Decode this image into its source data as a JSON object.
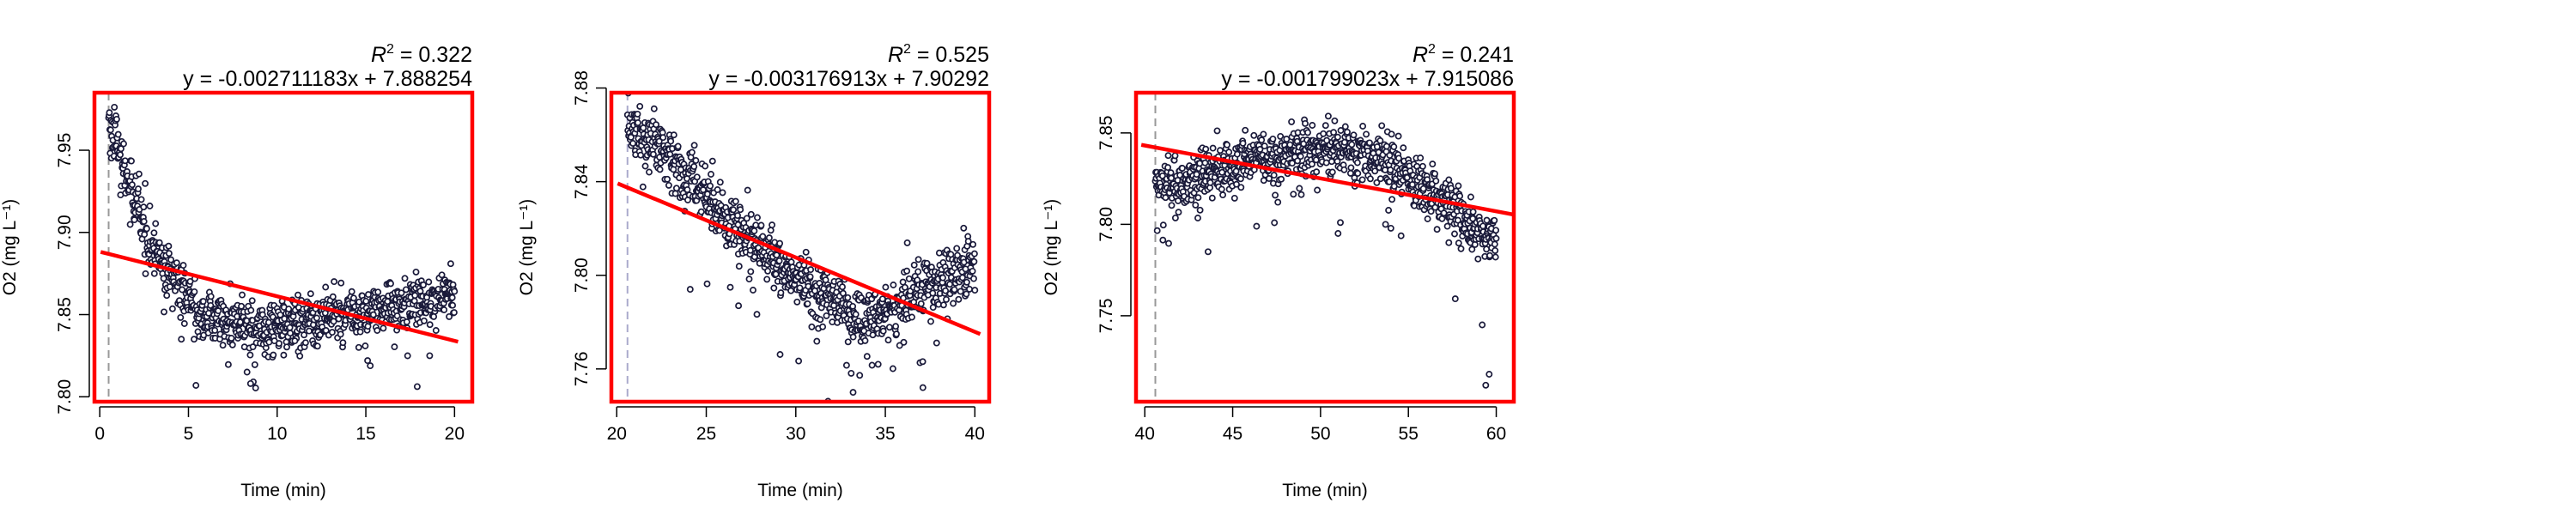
{
  "chart_data": [
    {
      "type": "scatter",
      "xlabel": "Time (min)",
      "ylabel": "O2 (mg L⁻¹)",
      "stat_prefix": "R",
      "r2_value": "0.322",
      "equation": "y = -0.002711183x + 7.888254",
      "regression": {
        "slope": -0.002711183,
        "intercept": 7.888254,
        "x_span": [
          0.05,
          20.2
        ]
      },
      "xlim": [
        -0.3,
        21.0
      ],
      "ylim": [
        7.797,
        7.985
      ],
      "xticks": [
        "0",
        "5",
        "10",
        "15",
        "20"
      ],
      "yticks": [
        "7.80",
        "7.85",
        "7.90",
        "7.95"
      ],
      "vline_x": 0.5,
      "trend_points": [
        [
          0.5,
          7.968
        ],
        [
          1,
          7.952
        ],
        [
          2,
          7.918
        ],
        [
          3,
          7.892
        ],
        [
          4,
          7.872
        ],
        [
          5,
          7.858
        ],
        [
          6,
          7.85
        ],
        [
          7,
          7.846
        ],
        [
          8,
          7.843
        ],
        [
          9,
          7.842
        ],
        [
          10,
          7.843
        ],
        [
          11,
          7.844
        ],
        [
          12,
          7.846
        ],
        [
          13,
          7.848
        ],
        [
          14,
          7.85
        ],
        [
          15,
          7.852
        ],
        [
          16,
          7.855
        ],
        [
          17,
          7.857
        ],
        [
          18,
          7.859
        ],
        [
          19,
          7.861
        ],
        [
          20,
          7.862
        ]
      ],
      "x_range": [
        0.5,
        20.0
      ],
      "noise": 0.008,
      "dips": [
        [
          8.3,
          7.815
        ],
        [
          8.5,
          7.808
        ],
        [
          15.1,
          7.822
        ],
        [
          18.6,
          7.825
        ],
        [
          4.6,
          7.835
        ],
        [
          11.0,
          7.834
        ],
        [
          14.6,
          7.83
        ]
      ],
      "line_color": "#FF0000",
      "frame_color": "#FF0000",
      "point_color": "#1a1a3a",
      "vline_color": "#999999"
    },
    {
      "type": "scatter",
      "xlabel": "Time (min)",
      "ylabel": "O2 (mg L⁻¹)",
      "stat_prefix": "R",
      "r2_value": "0.525",
      "equation": "y = -0.003176913x + 7.90292",
      "regression": {
        "slope": -0.003176913,
        "intercept": 7.90292,
        "x_span": [
          20.05,
          40.3
        ]
      },
      "xlim": [
        19.7,
        40.8
      ],
      "ylim": [
        7.746,
        7.878
      ],
      "xticks": [
        "20",
        "25",
        "30",
        "35",
        "40"
      ],
      "yticks": [
        "7.76",
        "7.80",
        "7.84",
        "7.88"
      ],
      "vline_x": 20.6,
      "trend_points": [
        [
          20.6,
          7.864
        ],
        [
          21.5,
          7.86
        ],
        [
          23,
          7.852
        ],
        [
          24,
          7.842
        ],
        [
          26,
          7.825
        ],
        [
          28,
          7.812
        ],
        [
          30,
          7.798
        ],
        [
          32,
          7.789
        ],
        [
          33.5,
          7.781
        ],
        [
          35,
          7.785
        ],
        [
          37,
          7.795
        ],
        [
          38.5,
          7.801
        ],
        [
          40,
          7.808
        ]
      ],
      "x_range": [
        20.6,
        40.0
      ],
      "noise": 0.006,
      "dips": [
        [
          33.2,
          7.75
        ],
        [
          37.1,
          7.752
        ],
        [
          24.1,
          7.794
        ],
        [
          26.8,
          7.787
        ],
        [
          31.5,
          7.778
        ],
        [
          34.6,
          7.762
        ],
        [
          35.8,
          7.77
        ]
      ],
      "line_color": "#FF0000",
      "frame_color": "#FF0000",
      "point_color": "#1a1a3a",
      "vline_color": "#aaaacc"
    },
    {
      "type": "scatter",
      "xlabel": "Time (min)",
      "ylabel": "O2 (mg L⁻¹)",
      "stat_prefix": "R",
      "r2_value": "0.241",
      "equation": "y = -0.001799023x + 7.915086",
      "regression": {
        "slope": -0.001799023,
        "intercept": 7.915086,
        "x_span": [
          39.8,
          61.0
        ]
      },
      "xlim": [
        39.5,
        61.0
      ],
      "ylim": [
        7.703,
        7.872
      ],
      "xticks": [
        "40",
        "45",
        "50",
        "55",
        "60"
      ],
      "yticks": [
        "7.75",
        "7.80",
        "7.85"
      ],
      "vline_x": 40.6,
      "trend_points": [
        [
          40.6,
          7.822
        ],
        [
          42,
          7.822
        ],
        [
          44,
          7.83
        ],
        [
          46,
          7.836
        ],
        [
          48,
          7.84
        ],
        [
          50,
          7.842
        ],
        [
          52,
          7.84
        ],
        [
          53.5,
          7.836
        ],
        [
          55,
          7.826
        ],
        [
          57,
          7.812
        ],
        [
          58.5,
          7.8
        ],
        [
          60,
          7.79
        ]
      ],
      "x_range": [
        40.6,
        60.0
      ],
      "noise": 0.007,
      "dips": [
        [
          59.4,
          7.712
        ],
        [
          59.6,
          7.718
        ],
        [
          59.2,
          7.745
        ],
        [
          43.6,
          7.785
        ],
        [
          51.0,
          7.795
        ],
        [
          53.7,
          7.8
        ],
        [
          57.3,
          7.79
        ]
      ],
      "line_color": "#FF0000",
      "frame_color": "#FF0000",
      "point_color": "#1a1a3a",
      "vline_color": "#999999"
    }
  ]
}
